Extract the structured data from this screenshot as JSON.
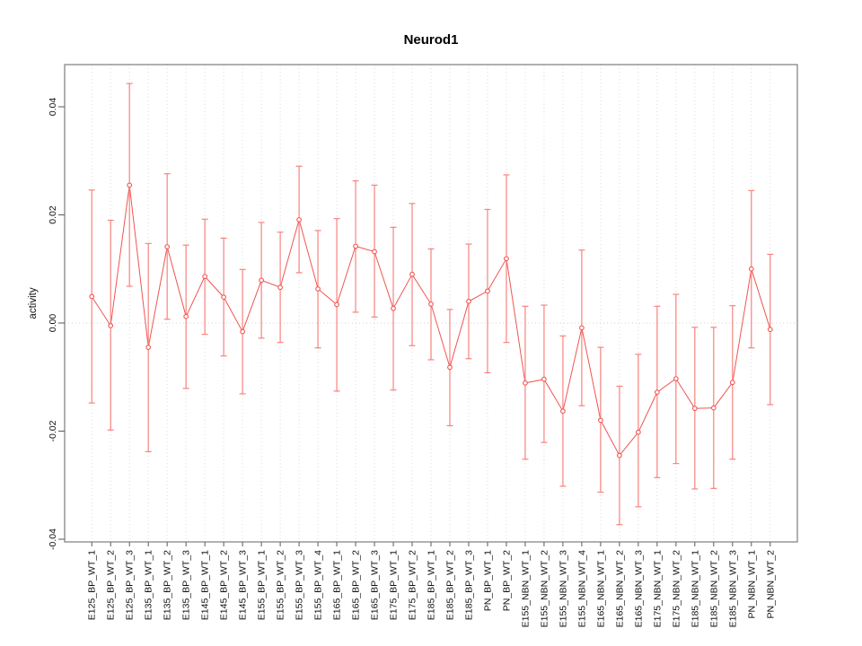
{
  "chart_data": {
    "type": "line",
    "subtype": "means-with-error-bars",
    "title": "Neurod1",
    "xlabel": "",
    "ylabel": "activity",
    "legend_position": "none",
    "grid": "vertical-dotted-per-category-and-dotted-zero-line",
    "point_symbol": "open-circle",
    "series_color": "#f05450",
    "errorbar_color": "#f8837e",
    "ylim": [
      -0.0405,
      0.0478
    ],
    "yticks": [
      -0.04,
      -0.02,
      0,
      0.02,
      0.04
    ],
    "ytick_labels": [
      "-0.04",
      "-0.02",
      "0.00",
      "0.02",
      "0.04"
    ],
    "categories": [
      "E125_BP_WT_1",
      "E125_BP_WT_2",
      "E125_BP_WT_3",
      "E135_BP_WT_1",
      "E135_BP_WT_2",
      "E135_BP_WT_3",
      "E145_BP_WT_1",
      "E145_BP_WT_2",
      "E145_BP_WT_3",
      "E155_BP_WT_1",
      "E155_BP_WT_2",
      "E155_BP_WT_3",
      "E155_BP_WT_4",
      "E165_BP_WT_1",
      "E165_BP_WT_2",
      "E165_BP_WT_3",
      "E175_BP_WT_1",
      "E175_BP_WT_2",
      "E185_BP_WT_1",
      "E185_BP_WT_2",
      "E185_BP_WT_3",
      "PN_BP_WT_1",
      "PN_BP_WT_2",
      "E155_NBN_WT_1",
      "E155_NBN_WT_2",
      "E155_NBN_WT_3",
      "E155_NBN_WT_4",
      "E165_NBN_WT_1",
      "E165_NBN_WT_2",
      "E165_NBN_WT_3",
      "E175_NBN_WT_1",
      "E175_NBN_WT_2",
      "E185_NBN_WT_1",
      "E185_NBN_WT_2",
      "E185_NBN_WT_3",
      "PN_NBN_WT_1",
      "PN_NBN_WT_2"
    ],
    "means": [
      0.0049,
      -0.0005,
      0.0255,
      -0.0045,
      0.0141,
      0.0012,
      0.0086,
      0.0048,
      -0.0016,
      0.0079,
      0.0066,
      0.0191,
      0.0063,
      0.0034,
      0.0142,
      0.0132,
      0.0027,
      0.009,
      0.0035,
      -0.0082,
      0.004,
      0.0059,
      0.0119,
      -0.0111,
      -0.0104,
      -0.0163,
      -0.0009,
      -0.018,
      -0.0245,
      -0.0202,
      -0.0128,
      -0.0103,
      -0.0158,
      -0.0157,
      -0.011,
      0.01,
      -0.0012
    ],
    "upper": [
      0.0246,
      0.019,
      0.0443,
      0.0147,
      0.0276,
      0.0144,
      0.0192,
      0.0157,
      0.0099,
      0.0186,
      0.0168,
      0.029,
      0.0171,
      0.0193,
      0.0263,
      0.0255,
      0.0177,
      0.0221,
      0.0137,
      0.0025,
      0.0146,
      0.021,
      0.0274,
      0.0031,
      0.0033,
      -0.0024,
      0.0135,
      -0.0045,
      -0.0117,
      -0.0058,
      0.0031,
      0.0053,
      -0.0008,
      -0.0008,
      0.0032,
      0.0245,
      0.0127
    ],
    "lower": [
      -0.0148,
      -0.0198,
      0.0068,
      -0.0238,
      0.0007,
      -0.0121,
      -0.0021,
      -0.0061,
      -0.0131,
      -0.0028,
      -0.0036,
      0.0093,
      -0.0046,
      -0.0126,
      0.002,
      0.0011,
      -0.0124,
      -0.0042,
      -0.0068,
      -0.019,
      -0.0066,
      -0.0092,
      -0.0036,
      -0.0252,
      -0.0221,
      -0.0302,
      -0.0153,
      -0.0313,
      -0.0373,
      -0.034,
      -0.0286,
      -0.026,
      -0.0307,
      -0.0306,
      -0.0252,
      -0.0046,
      -0.0151
    ]
  }
}
